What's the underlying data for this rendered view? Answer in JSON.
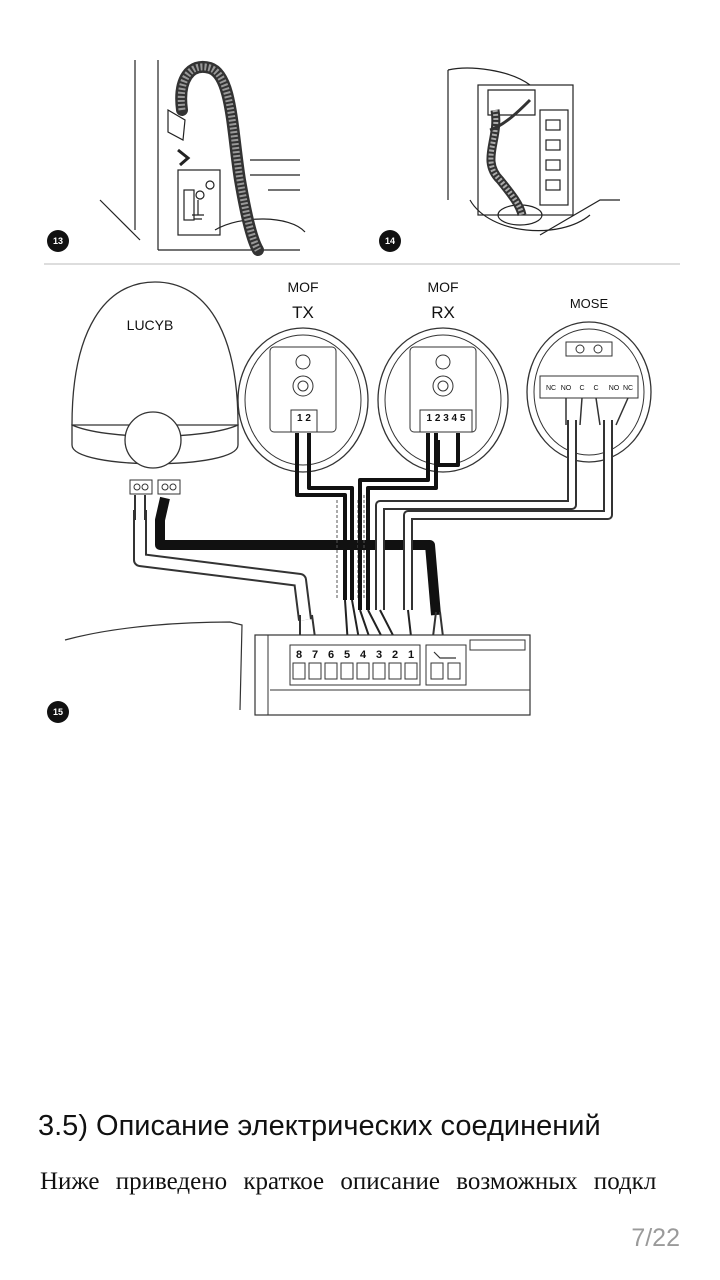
{
  "figures": {
    "fig13": {
      "badge": "13"
    },
    "fig14": {
      "badge": "14"
    },
    "fig15": {
      "badge": "15",
      "lucy_label": "LUCYB",
      "tx_group": "MOF",
      "tx_label": "TX",
      "tx_terminals": "1 2",
      "rx_group": "MOF",
      "rx_label": "RX",
      "rx_terminals": "1 2 3 4 5",
      "mose_label": "MOSE",
      "mose_terminals": [
        "NC",
        "NO",
        "C",
        "C",
        "NO",
        "NC"
      ],
      "board_terminals": [
        "8",
        "7",
        "6",
        "5",
        "4",
        "3",
        "2",
        "1"
      ]
    }
  },
  "section": {
    "heading": "3.5) Описание электрических соединений",
    "body": "Ниже приведено краткое описание возможных подкл"
  },
  "pager": {
    "indicator": "7/22"
  }
}
